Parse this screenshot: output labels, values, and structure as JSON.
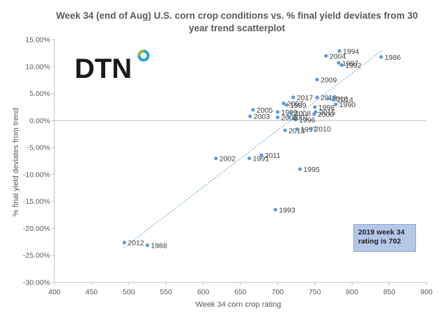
{
  "logo": {
    "text": "DTN"
  },
  "annotation": {
    "line1": "2019 week 34",
    "line2": "rating is 702"
  },
  "chart_data": {
    "type": "scatter",
    "title_lines": [
      "Week 34 (end of Aug) U.S. corn crop conditions vs. % final yield deviates from 30",
      "year trend scatterplot"
    ],
    "xlabel": "Week 34 corn crop rating",
    "ylabel": "% final yield deviates from trend",
    "xlim": [
      400,
      900
    ],
    "ylim": [
      -30,
      15
    ],
    "x_ticks": [
      "400",
      "450",
      "500",
      "550",
      "600",
      "650",
      "700",
      "750",
      "800",
      "850",
      "900"
    ],
    "y_ticks": [
      "15.00%",
      "10.00%",
      "5.00%",
      "0.00%",
      "-5.00%",
      "-10.00%",
      "-15.00%",
      "-20.00%",
      "-25.00%",
      "-30.00%"
    ],
    "grid": false,
    "series_color": "#5b9bd5",
    "trendline": {
      "x": [
        494,
        840
      ],
      "y": [
        -23.5,
        13.0
      ],
      "style": "dotted"
    },
    "points": [
      {
        "year": "1986",
        "x": 839,
        "y": 11.8
      },
      {
        "year": "1994",
        "x": 783,
        "y": 12.9
      },
      {
        "year": "2004",
        "x": 765,
        "y": 12.0
      },
      {
        "year": "1992",
        "x": 786,
        "y": 10.3
      },
      {
        "year": "1997",
        "x": 782,
        "y": 10.7
      },
      {
        "year": "2009",
        "x": 753,
        "y": 7.6
      },
      {
        "year": "2017",
        "x": 721,
        "y": 4.3
      },
      {
        "year": "2018",
        "x": 753,
        "y": 4.3
      },
      {
        "year": "2016",
        "x": 768,
        "y": 4.1
      },
      {
        "year": "2014",
        "x": 775,
        "y": 3.9
      },
      {
        "year": "1990",
        "x": 778,
        "y": 3.0
      },
      {
        "year": "2007",
        "x": 708,
        "y": 3.2
      },
      {
        "year": "1989",
        "x": 712,
        "y": 2.9
      },
      {
        "year": "1998",
        "x": 750,
        "y": 2.5
      },
      {
        "year": "2005",
        "x": 667,
        "y": 2.0
      },
      {
        "year": "1999",
        "x": 700,
        "y": 1.6
      },
      {
        "year": "2008",
        "x": 718,
        "y": 1.4
      },
      {
        "year": "2015",
        "x": 751,
        "y": 1.6
      },
      {
        "year": "2000",
        "x": 749,
        "y": 1.2
      },
      {
        "year": "2003",
        "x": 663,
        "y": 0.8
      },
      {
        "year": "1996",
        "x": 724,
        "y": 0.2
      },
      {
        "year": "2006",
        "x": 700,
        "y": 0.6
      },
      {
        "year": "2001",
        "x": 715,
        "y": 0.7
      },
      {
        "year": "2013",
        "x": 710,
        "y": -1.8
      },
      {
        "year": "1997",
        "x": 726,
        "y": -1.6
      },
      {
        "year": "2010",
        "x": 745,
        "y": -1.5
      },
      {
        "year": "2002",
        "x": 617,
        "y": -7.0
      },
      {
        "year": "1991",
        "x": 662,
        "y": -7.0
      },
      {
        "year": "2011",
        "x": 678,
        "y": -6.4
      },
      {
        "year": "1995",
        "x": 730,
        "y": -9.0
      },
      {
        "year": "1993",
        "x": 697,
        "y": -16.5
      },
      {
        "year": "2012",
        "x": 494,
        "y": -22.6
      },
      {
        "year": "1988",
        "x": 525,
        "y": -23.1
      }
    ]
  }
}
